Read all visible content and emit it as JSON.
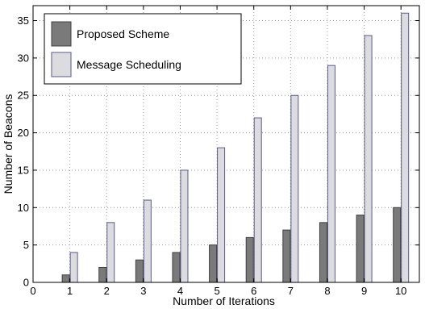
{
  "chart_data": {
    "type": "bar",
    "title": "",
    "xlabel": "Number of Iterations",
    "ylabel": "Number of Beacons",
    "categories": [
      "1",
      "2",
      "3",
      "4",
      "5",
      "6",
      "7",
      "8",
      "9",
      "10"
    ],
    "x_ticks": [
      "0",
      "1",
      "2",
      "3",
      "4",
      "5",
      "6",
      "7",
      "8",
      "9",
      "10"
    ],
    "y_ticks": [
      "0",
      "5",
      "10",
      "15",
      "20",
      "25",
      "30",
      "35"
    ],
    "xlim": [
      0,
      10.5
    ],
    "ylim": [
      0,
      37
    ],
    "grid": true,
    "legend_position": "top-left",
    "series": [
      {
        "name": "Proposed Scheme",
        "color": "#7a7a7a",
        "values": [
          1,
          2,
          3,
          4,
          5,
          6,
          7,
          8,
          9,
          10
        ]
      },
      {
        "name": "Message Scheduling",
        "color": "#dcdce0",
        "values": [
          4,
          8,
          11,
          15,
          18,
          22,
          25,
          29,
          33,
          36
        ]
      }
    ]
  }
}
